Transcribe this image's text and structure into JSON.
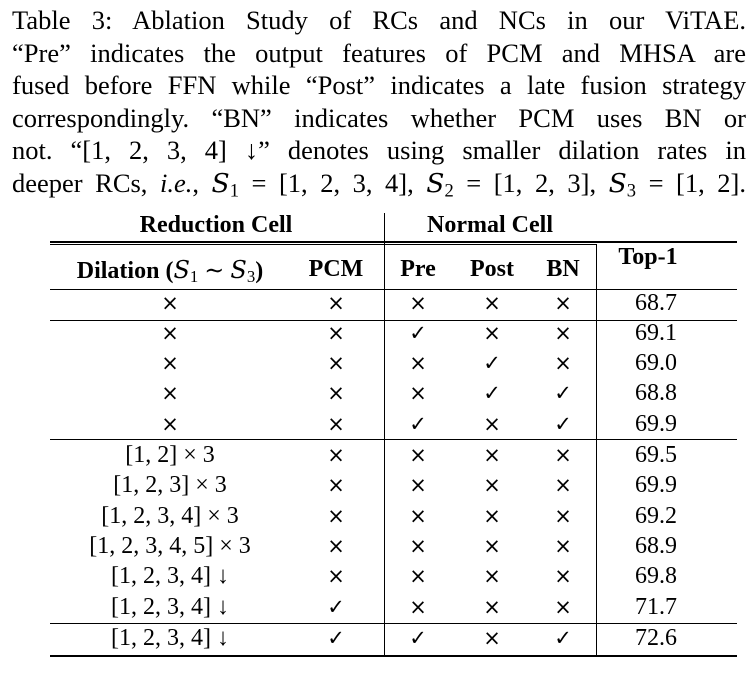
{
  "caption": {
    "lines": [
      "Table 3:  Ablation Study of RCs and NCs in our ViTAE.",
      "“Pre” indicates the output features of PCM and MHSA are",
      "fused before FFN while “Post” indicates a late fusion strategy",
      "correspondingly. “BN” indicates whether PCM uses BN or",
      "not.  “[1, 2, 3, 4] ↓” denotes using smaller dilation rates in"
    ],
    "last_line": {
      "prefix": "deeper RCs, ",
      "abbr": "i.e.",
      "s1": "S",
      "s1_sub": "1",
      "s1_val": " = [1, 2, 3, 4], ",
      "s2": "S",
      "s2_sub": "2",
      "s2_val": " = [1, 2, 3], ",
      "s3": "S",
      "s3_sub": "3",
      "s3_val": " = [1, 2]."
    }
  },
  "table": {
    "group_headers": {
      "reduction_cell": "Reduction Cell",
      "normal_cell": "Normal Cell"
    },
    "column_headers": {
      "dilation_prefix": "Dilation (",
      "dilation_s": "S",
      "dilation_sub1": "1",
      "dilation_tilde": " ∼ ",
      "dilation_sub3": "3",
      "dilation_suffix": ")",
      "pcm": "PCM",
      "pre": "Pre",
      "post": "Post",
      "bn": "BN",
      "top1": "Top-1"
    },
    "rows": [
      {
        "dilation": "×",
        "pcm": "×",
        "pre": "×",
        "post": "×",
        "bn": "×",
        "top1": "68.7"
      },
      {
        "dilation": "×",
        "pcm": "×",
        "pre": "✓",
        "post": "×",
        "bn": "×",
        "top1": "69.1"
      },
      {
        "dilation": "×",
        "pcm": "×",
        "pre": "×",
        "post": "✓",
        "bn": "×",
        "top1": "69.0"
      },
      {
        "dilation": "×",
        "pcm": "×",
        "pre": "×",
        "post": "✓",
        "bn": "✓",
        "top1": "68.8"
      },
      {
        "dilation": "×",
        "pcm": "×",
        "pre": "✓",
        "post": "×",
        "bn": "✓",
        "top1": "69.9"
      },
      {
        "dilation": "[1, 2] × 3",
        "pcm": "×",
        "pre": "×",
        "post": "×",
        "bn": "×",
        "top1": "69.5"
      },
      {
        "dilation": "[1, 2, 3] × 3",
        "pcm": "×",
        "pre": "×",
        "post": "×",
        "bn": "×",
        "top1": "69.9"
      },
      {
        "dilation": "[1, 2, 3, 4] × 3",
        "pcm": "×",
        "pre": "×",
        "post": "×",
        "bn": "×",
        "top1": "69.2"
      },
      {
        "dilation": "[1, 2, 3, 4, 5] × 3",
        "pcm": "×",
        "pre": "×",
        "post": "×",
        "bn": "×",
        "top1": "68.9"
      },
      {
        "dilation": "[1, 2, 3, 4] ↓",
        "pcm": "×",
        "pre": "×",
        "post": "×",
        "bn": "×",
        "top1": "69.8"
      },
      {
        "dilation": "[1, 2, 3, 4] ↓",
        "pcm": "✓",
        "pre": "×",
        "post": "×",
        "bn": "×",
        "top1": "71.7"
      },
      {
        "dilation": "[1, 2, 3, 4] ↓",
        "pcm": "✓",
        "pre": "✓",
        "post": "×",
        "bn": "✓",
        "top1": "72.6"
      }
    ]
  }
}
